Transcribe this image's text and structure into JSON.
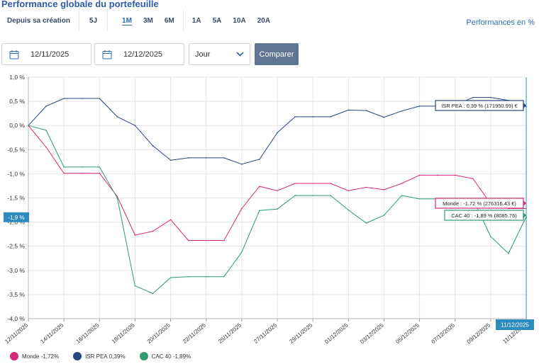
{
  "header": {
    "title": "Performance globale du portefeuille",
    "performance_link": "Performances en %"
  },
  "periods": [
    {
      "label": "Depuis sa création",
      "active": false
    },
    {
      "label": "5J",
      "active": false
    },
    {
      "label": "1M",
      "active": true
    },
    {
      "label": "3M",
      "active": false
    },
    {
      "label": "6M",
      "active": false
    },
    {
      "label": "1A",
      "active": false
    },
    {
      "label": "5A",
      "active": false
    },
    {
      "label": "10A",
      "active": false
    },
    {
      "label": "20A",
      "active": false
    }
  ],
  "filters": {
    "start_date": "12/11/2025",
    "end_date": "12/12/2025",
    "granularity": "Jour",
    "compare_label": "Comparer"
  },
  "colors": {
    "monde": "#d6287a",
    "isr": "#26467f",
    "cac": "#2e9b6e",
    "crosshair": "#2d8bbf"
  },
  "chart_data": {
    "type": "line",
    "x": [
      "12/11/2025",
      "13/11/2025",
      "14/11/2025",
      "15/11/2025",
      "16/11/2025",
      "17/11/2025",
      "18/11/2025",
      "19/11/2025",
      "20/11/2025",
      "21/11/2025",
      "22/11/2025",
      "24/11/2025",
      "25/11/2025",
      "26/11/2025",
      "27/11/2025",
      "28/11/2025",
      "29/11/2025",
      "30/11/2025",
      "01/12/2025",
      "02/12/2025",
      "03/12/2025",
      "04/12/2025",
      "05/12/2025",
      "06/12/2025",
      "07/12/2025",
      "08/12/2025",
      "09/12/2025",
      "10/12/2025",
      "11/12/2025"
    ],
    "x_tick_labels": [
      "12/11/2025",
      "14/11/2025",
      "16/11/2025",
      "18/11/2025",
      "20/11/2025",
      "22/11/2025",
      "25/11/2025",
      "27/11/2025",
      "29/11/2025",
      "01/12/2025",
      "03/12/2025",
      "05/12/2025",
      "07/12/2025",
      "09/12/2025",
      "11/12/2025"
    ],
    "ylim": [
      -4.0,
      1.0
    ],
    "y_ticks": [
      "1,0 %",
      "0,5 %",
      "0,0 %",
      "-0,5 %",
      "-1,0 %",
      "-1,5 %",
      "-2,0 %",
      "-2,5 %",
      "-3,0 %",
      "-3,5 %",
      "-4,0 %"
    ],
    "grid": true,
    "series": [
      {
        "key": "isr",
        "name": "ISR PEA",
        "legend_value": "0,39%",
        "values": [
          0.0,
          0.4,
          0.56,
          0.56,
          0.56,
          0.18,
          0.0,
          -0.42,
          -0.72,
          -0.67,
          -0.67,
          -0.67,
          -0.8,
          -0.7,
          -0.15,
          0.18,
          0.18,
          0.18,
          0.32,
          0.31,
          0.17,
          0.3,
          0.4,
          0.4,
          0.42,
          0.58,
          0.58,
          0.52,
          0.39
        ]
      },
      {
        "key": "monde",
        "name": "Monde",
        "legend_value": "-1,72%",
        "values": [
          0.0,
          -0.45,
          -0.99,
          -0.99,
          -0.99,
          -1.47,
          -2.27,
          -2.19,
          -1.95,
          -2.38,
          -2.38,
          -2.38,
          -1.72,
          -1.26,
          -1.35,
          -1.2,
          -1.2,
          -1.2,
          -1.35,
          -1.28,
          -1.33,
          -1.2,
          -1.03,
          -1.03,
          -1.03,
          -1.1,
          -1.62,
          -1.72,
          -1.72
        ]
      },
      {
        "key": "cac",
        "name": "CAC 40",
        "legend_value": "-1,89%",
        "values": [
          0.0,
          -0.1,
          -0.86,
          -0.86,
          -0.86,
          -1.5,
          -3.32,
          -3.48,
          -3.15,
          -3.13,
          -3.13,
          -3.13,
          -2.62,
          -1.76,
          -1.73,
          -1.45,
          -1.45,
          -1.45,
          -1.75,
          -2.02,
          -1.86,
          -1.45,
          -1.52,
          -1.52,
          -1.52,
          -1.52,
          -2.3,
          -2.65,
          -1.89
        ]
      }
    ],
    "tooltips": [
      {
        "key": "isr",
        "text": "ISR PEA : 0,39 % (171950.99) €"
      },
      {
        "key": "monde",
        "text": "Monde : -1,72 % (276316.43 €)"
      },
      {
        "key": "cac",
        "text": "CAC 40 : -1,89 % (8085.76)"
      }
    ],
    "crosshair": {
      "date_label": "11/12/2025",
      "value_label": "-1,9 %",
      "value": -1.9
    }
  }
}
